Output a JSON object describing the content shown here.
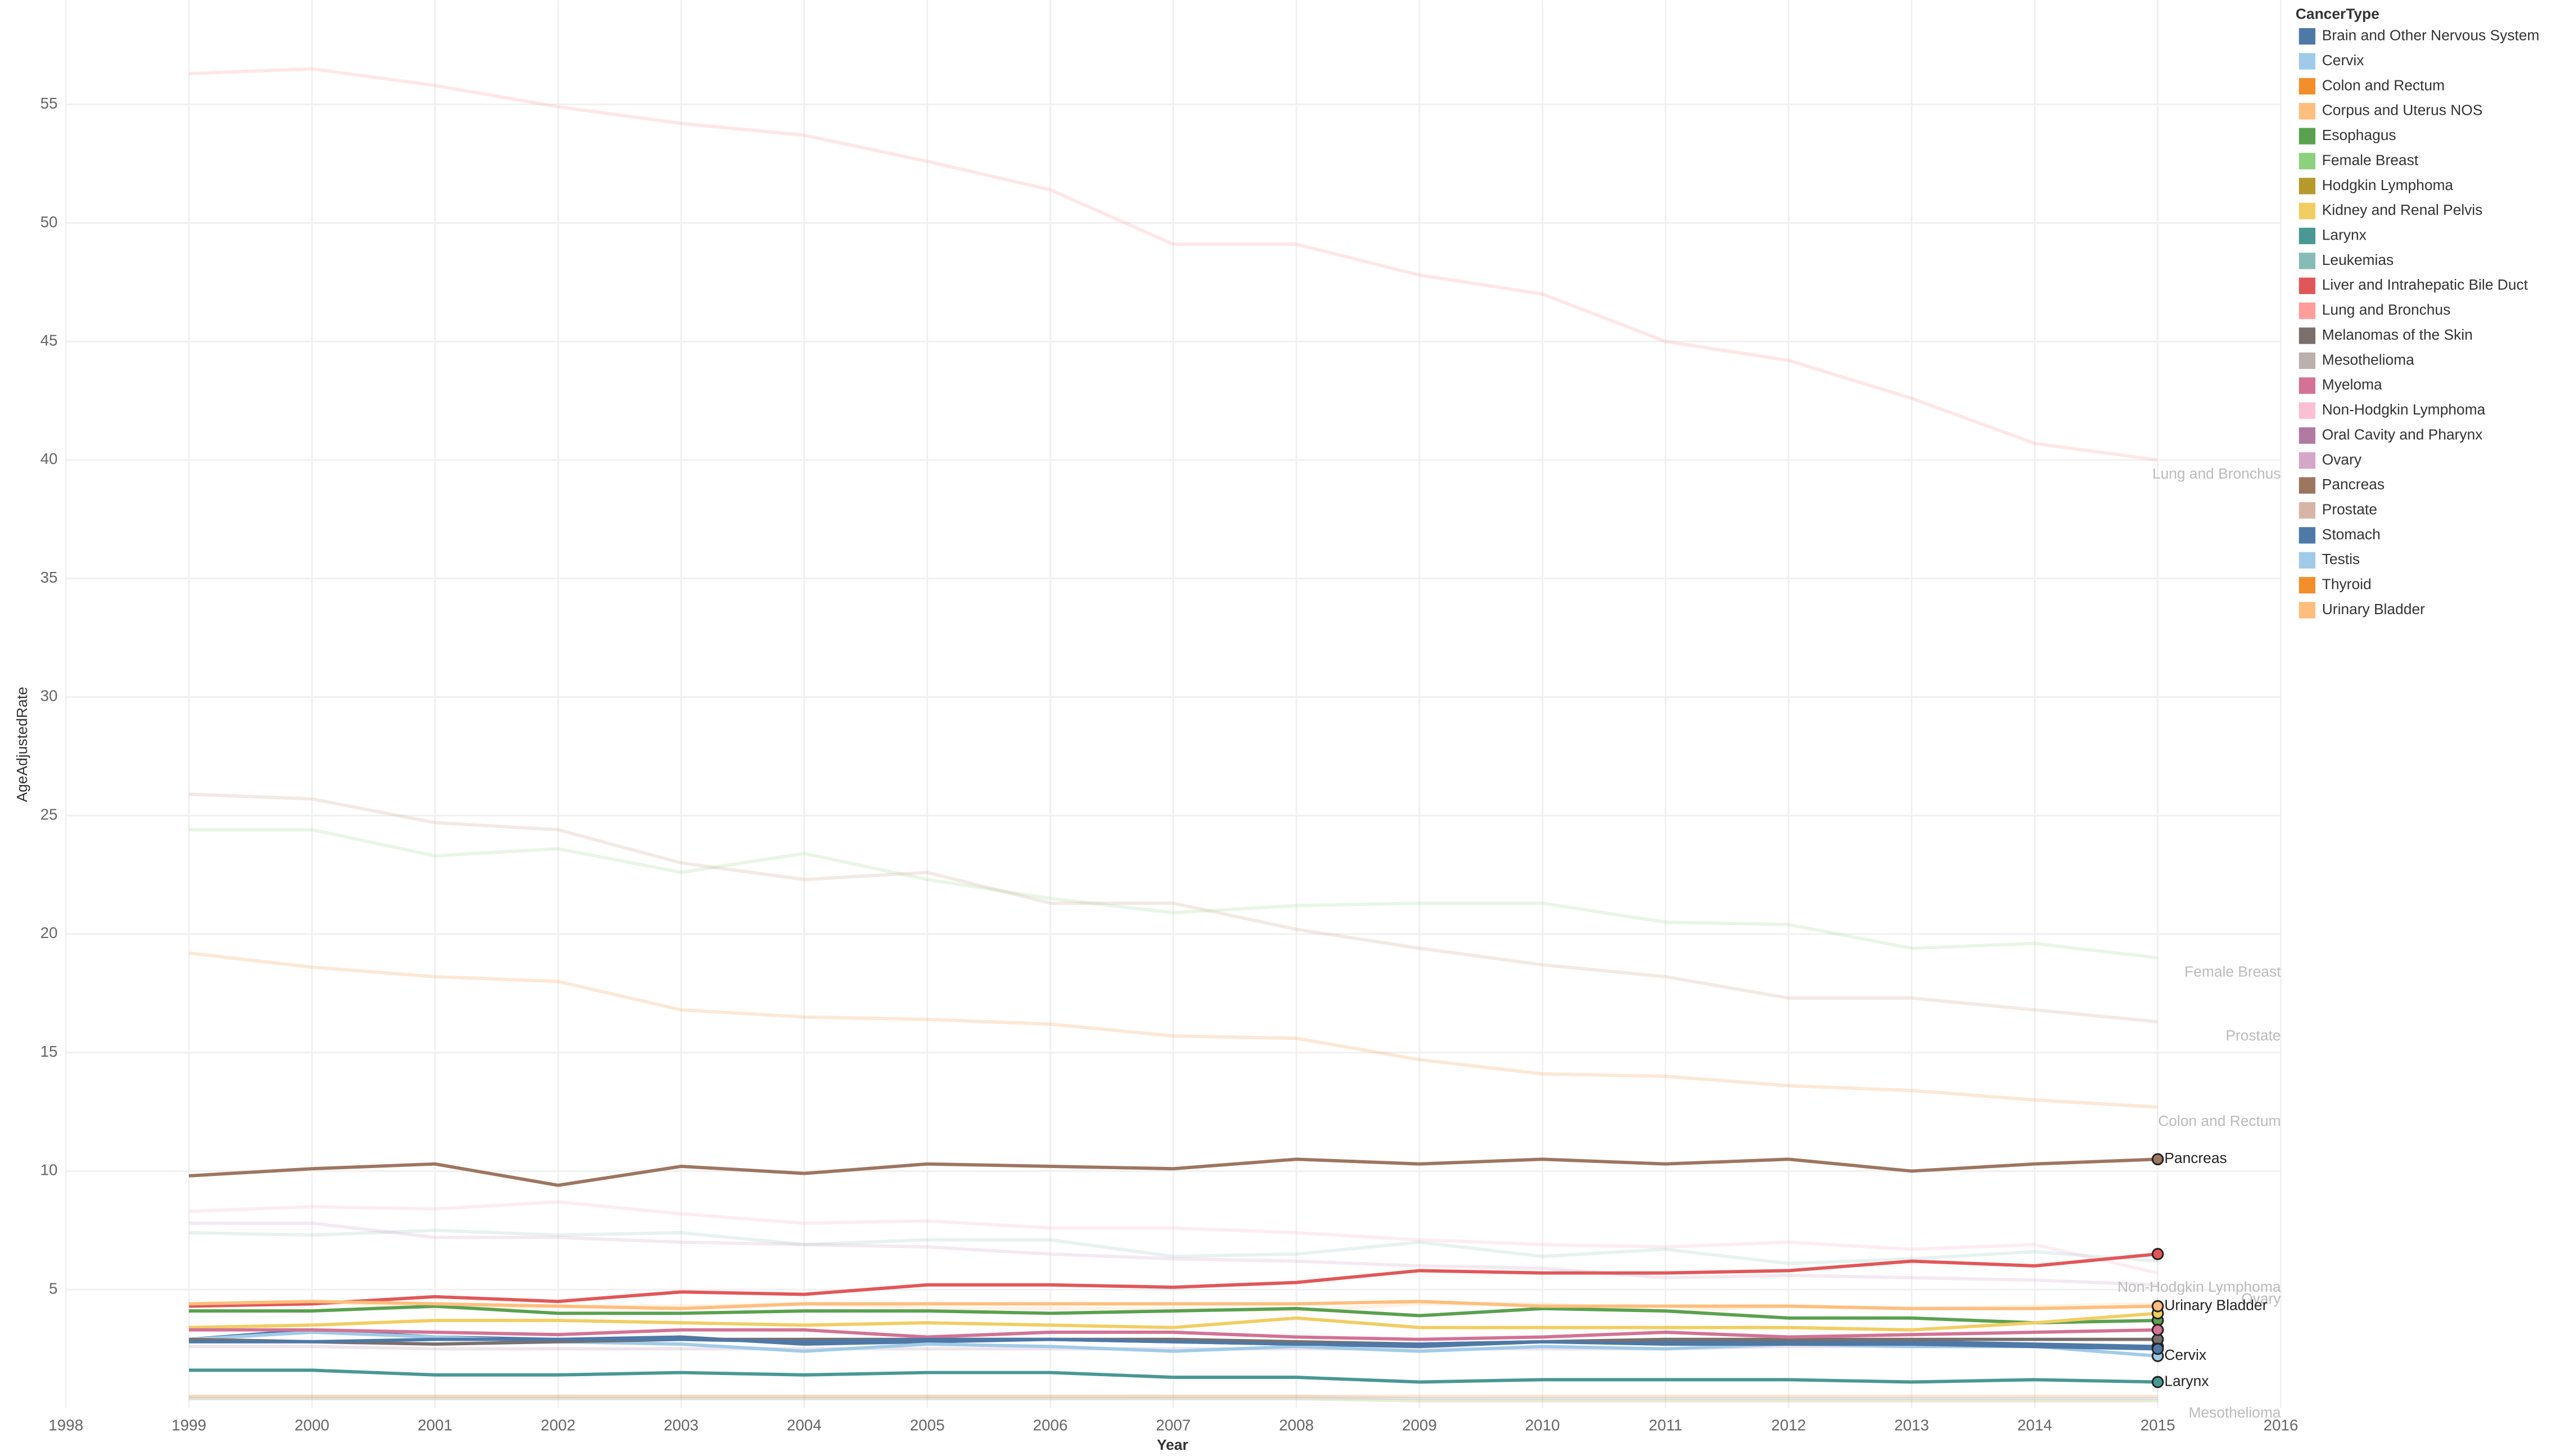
{
  "chart_data": {
    "type": "line",
    "x_label": "Year",
    "y_label": "AgeAdjustedRate",
    "legend_title": "CancerType",
    "legend": "right",
    "x": [
      1999,
      2000,
      2001,
      2002,
      2003,
      2004,
      2005,
      2006,
      2007,
      2008,
      2009,
      2010,
      2011,
      2012,
      2013,
      2014,
      2015
    ],
    "xlim": [
      1998,
      2016
    ],
    "xticks": [
      1998,
      1999,
      2000,
      2001,
      2002,
      2003,
      2004,
      2005,
      2006,
      2007,
      2008,
      2009,
      2010,
      2011,
      2012,
      2013,
      2014,
      2015,
      2016
    ],
    "ylim": [
      0,
      59.4
    ],
    "yticks": [
      5,
      10,
      15,
      20,
      25,
      30,
      35,
      40,
      45,
      50,
      55
    ],
    "grid": true,
    "series": [
      {
        "name": "Brain and Other Nervous System",
        "color": "#4e79a7",
        "opacity": 1,
        "marker": true,
        "values": [
          2.9,
          3.3,
          3.0,
          2.9,
          3.0,
          2.7,
          2.8,
          2.9,
          2.8,
          2.7,
          2.6,
          2.8,
          2.8,
          2.8,
          2.8,
          2.7,
          2.6
        ]
      },
      {
        "name": "Cervix",
        "color": "#a0cbe8",
        "opacity": 1,
        "marker": true,
        "labeled": true,
        "values": [
          2.9,
          3.2,
          3.0,
          2.8,
          2.7,
          2.4,
          2.7,
          2.6,
          2.4,
          2.6,
          2.4,
          2.6,
          2.5,
          2.7,
          2.6,
          2.6,
          2.2
        ]
      },
      {
        "name": "Colon and Rectum",
        "color": "#f28e2b",
        "opacity": 0.2,
        "labeled": true,
        "values": [
          19.2,
          18.6,
          18.2,
          18.0,
          16.8,
          16.5,
          16.4,
          16.2,
          15.7,
          15.6,
          14.7,
          14.1,
          14.0,
          13.6,
          13.4,
          13.0,
          12.7
        ]
      },
      {
        "name": "Corpus and Uterus NOS",
        "color": "#ffbe7d",
        "opacity": 0.2,
        "values": [
          4.4,
          4.5,
          4.2,
          4.3,
          4.3,
          4.4,
          4.2,
          4.2,
          4.2,
          4.1,
          4.4,
          4.4,
          4.1,
          4.3,
          4.2,
          4.3,
          4.4
        ]
      },
      {
        "name": "Esophagus",
        "color": "#59a14f",
        "opacity": 1,
        "marker": true,
        "values": [
          4.1,
          4.1,
          4.3,
          4.0,
          4.0,
          4.1,
          4.1,
          4.0,
          4.1,
          4.2,
          3.9,
          4.2,
          4.1,
          3.8,
          3.8,
          3.6,
          3.7
        ]
      },
      {
        "name": "Female Breast",
        "color": "#8cd17d",
        "opacity": 0.2,
        "labeled": true,
        "values": [
          24.4,
          24.4,
          23.3,
          23.6,
          22.6,
          23.4,
          22.3,
          21.5,
          20.9,
          21.2,
          21.3,
          21.3,
          20.5,
          20.4,
          19.4,
          19.6,
          19.0
        ]
      },
      {
        "name": "Hodgkin Lymphoma",
        "color": "#b6992d",
        "opacity": 0.2,
        "values": [
          0.4,
          0.4,
          0.4,
          0.4,
          0.4,
          0.4,
          0.4,
          0.4,
          0.4,
          0.4,
          0.3,
          0.3,
          0.3,
          0.3,
          0.3,
          0.3,
          0.3
        ]
      },
      {
        "name": "Kidney and Renal Pelvis",
        "color": "#f1ce63",
        "opacity": 1,
        "marker": true,
        "values": [
          3.4,
          3.5,
          3.7,
          3.7,
          3.6,
          3.5,
          3.6,
          3.5,
          3.4,
          3.8,
          3.4,
          3.4,
          3.4,
          3.4,
          3.3,
          3.6,
          4.0
        ]
      },
      {
        "name": "Larynx",
        "color": "#499894",
        "opacity": 1,
        "marker": true,
        "labeled": true,
        "values": [
          1.6,
          1.6,
          1.4,
          1.4,
          1.5,
          1.4,
          1.5,
          1.5,
          1.3,
          1.3,
          1.1,
          1.2,
          1.2,
          1.2,
          1.1,
          1.2,
          1.1
        ]
      },
      {
        "name": "Leukemias",
        "color": "#86bcb6",
        "opacity": 0.2,
        "values": [
          7.4,
          7.3,
          7.5,
          7.3,
          7.4,
          6.9,
          7.1,
          7.1,
          6.4,
          6.5,
          7.0,
          6.4,
          6.7,
          6.1,
          6.3,
          6.6,
          6.2
        ]
      },
      {
        "name": "Liver and Intrahepatic Bile Duct",
        "color": "#e15759",
        "opacity": 1,
        "marker": true,
        "values": [
          4.3,
          4.4,
          4.7,
          4.5,
          4.9,
          4.8,
          5.2,
          5.2,
          5.1,
          5.3,
          5.8,
          5.7,
          5.7,
          5.8,
          6.2,
          6.0,
          6.5
        ]
      },
      {
        "name": "Lung and Bronchus",
        "color": "#ff9d9a",
        "opacity": 0.25,
        "labeled": true,
        "values": [
          56.3,
          56.5,
          55.8,
          54.9,
          54.2,
          53.7,
          52.6,
          51.4,
          49.1,
          49.1,
          47.8,
          47.0,
          45.0,
          44.2,
          42.6,
          40.7,
          40.0
        ]
      },
      {
        "name": "Melanomas of the Skin",
        "color": "#79706e",
        "opacity": 1,
        "marker": true,
        "values": [
          2.9,
          2.8,
          2.7,
          2.8,
          2.9,
          2.9,
          2.9,
          2.9,
          2.9,
          2.8,
          2.7,
          2.8,
          2.9,
          2.9,
          2.9,
          2.9,
          2.9
        ]
      },
      {
        "name": "Mesothelioma",
        "color": "#bab0ac",
        "opacity": 0.2,
        "labeled": true,
        "values": [
          0.5,
          0.5,
          0.5,
          0.5,
          0.5,
          0.5,
          0.5,
          0.5,
          0.5,
          0.5,
          0.4,
          0.4,
          0.4,
          0.4,
          0.4,
          0.4,
          0.4
        ]
      },
      {
        "name": "Myeloma",
        "color": "#d37295",
        "opacity": 1,
        "marker": true,
        "values": [
          3.3,
          3.3,
          3.2,
          3.1,
          3.3,
          3.3,
          3.0,
          3.2,
          3.2,
          3.0,
          2.9,
          3.0,
          3.2,
          3.0,
          3.1,
          3.2,
          3.3
        ]
      },
      {
        "name": "Non-Hodgkin Lymphoma",
        "color": "#fabfd2",
        "opacity": 0.3,
        "labeled": true,
        "values": [
          8.3,
          8.5,
          8.4,
          8.7,
          8.2,
          7.8,
          7.9,
          7.6,
          7.6,
          7.4,
          7.1,
          6.9,
          6.8,
          7.0,
          6.7,
          6.9,
          5.7
        ]
      },
      {
        "name": "Oral Cavity and Pharynx",
        "color": "#b07aa1",
        "opacity": 0.2,
        "values": [
          2.6,
          2.6,
          2.5,
          2.5,
          2.5,
          2.5,
          2.5,
          2.5,
          2.5,
          2.5,
          2.5,
          2.5,
          2.5,
          2.6,
          2.6,
          2.6,
          2.6
        ]
      },
      {
        "name": "Ovary",
        "color": "#d4a6c8",
        "opacity": 0.25,
        "labeled": true,
        "values": [
          7.8,
          7.8,
          7.2,
          7.2,
          7.0,
          6.9,
          6.8,
          6.5,
          6.3,
          6.2,
          6.0,
          5.9,
          5.5,
          5.6,
          5.5,
          5.4,
          5.2
        ]
      },
      {
        "name": "Pancreas",
        "color": "#9d7660",
        "opacity": 1,
        "marker": true,
        "labeled": true,
        "values": [
          9.8,
          10.1,
          10.3,
          9.4,
          10.2,
          9.9,
          10.3,
          10.2,
          10.1,
          10.5,
          10.3,
          10.5,
          10.3,
          10.5,
          10.0,
          10.3,
          10.5
        ]
      },
      {
        "name": "Prostate",
        "color": "#d7b5a6",
        "opacity": 0.3,
        "labeled": true,
        "values": [
          25.9,
          25.7,
          24.7,
          24.4,
          23.0,
          22.3,
          22.6,
          21.3,
          21.3,
          20.2,
          19.4,
          18.7,
          18.2,
          17.3,
          17.3,
          16.8,
          16.3
        ]
      },
      {
        "name": "Stomach",
        "color": "#4e79a7",
        "opacity": 1,
        "marker": true,
        "values": [
          2.8,
          2.8,
          2.9,
          2.9,
          2.9,
          2.8,
          2.9,
          2.9,
          2.8,
          2.7,
          2.7,
          2.8,
          2.7,
          2.7,
          2.7,
          2.6,
          2.5
        ]
      },
      {
        "name": "Testis",
        "color": "#a0cbe8",
        "opacity": 0.2,
        "values": [
          0.4,
          0.4,
          0.4,
          0.4,
          0.4,
          0.4,
          0.4,
          0.4,
          0.4,
          0.4,
          0.4,
          0.4,
          0.4,
          0.4,
          0.4,
          0.4,
          0.4
        ]
      },
      {
        "name": "Thyroid",
        "color": "#f28e2b",
        "opacity": 0.2,
        "values": [
          0.5,
          0.5,
          0.5,
          0.5,
          0.5,
          0.5,
          0.5,
          0.5,
          0.5,
          0.5,
          0.5,
          0.5,
          0.5,
          0.5,
          0.5,
          0.5,
          0.5
        ]
      },
      {
        "name": "Urinary Bladder",
        "color": "#ffbe7d",
        "opacity": 1,
        "marker": true,
        "labeled": true,
        "values": [
          4.4,
          4.5,
          4.4,
          4.3,
          4.2,
          4.4,
          4.4,
          4.4,
          4.4,
          4.4,
          4.5,
          4.3,
          4.3,
          4.3,
          4.2,
          4.2,
          4.3
        ]
      }
    ]
  }
}
